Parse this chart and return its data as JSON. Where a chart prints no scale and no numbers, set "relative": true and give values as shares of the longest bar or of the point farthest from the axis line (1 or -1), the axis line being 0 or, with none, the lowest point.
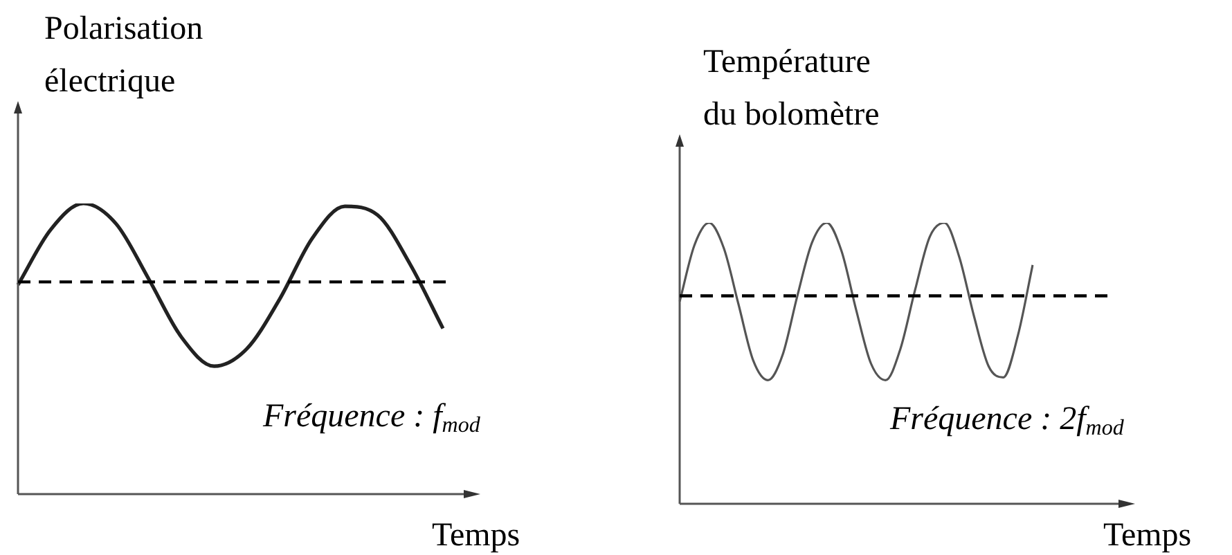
{
  "chart_data": [
    {
      "type": "line",
      "relative": true,
      "ylabel": "Polarisation\nélectrique",
      "xlabel": "Temps",
      "annotations": [
        "Fréquence : f$_{mod}$"
      ],
      "categories": [
        null,
        null,
        null,
        null,
        null,
        null,
        null,
        null,
        null,
        null,
        null,
        null,
        null,
        null
      ],
      "series": [
        {
          "color": "#222222",
          "values": [
            0.72,
            0.91,
            1.0,
            0.93,
            0.74,
            0.54,
            0.44,
            0.5,
            0.67,
            0.88,
            0.99,
            0.96,
            0.79,
            0.57
          ]
        }
      ],
      "ref_lines": [
        {
          "axis": "y",
          "value": 0.73,
          "line_style": "dashed",
          "color": "#000000"
        }
      ]
    },
    {
      "type": "line",
      "relative": true,
      "ylabel": "Température\ndu bolomètre",
      "xlabel": "Temps",
      "annotations": [
        "Fréquence : 2f$_{mod}$"
      ],
      "categories": [
        null,
        null,
        null,
        null,
        null,
        null,
        null,
        null,
        null,
        null,
        null,
        null,
        null,
        null,
        null,
        null,
        null,
        null,
        null,
        null,
        null,
        null,
        null,
        null,
        null
      ],
      "series": [
        {
          "color": "#555555",
          "values": [
            0.72,
            0.92,
            1.0,
            0.91,
            0.71,
            0.51,
            0.44,
            0.53,
            0.74,
            0.93,
            1.0,
            0.9,
            0.69,
            0.5,
            0.44,
            0.55,
            0.76,
            0.95,
            1.0,
            0.88,
            0.67,
            0.49,
            0.45,
            0.6,
            0.85
          ]
        }
      ],
      "ref_lines": [
        {
          "axis": "y",
          "value": 0.74,
          "line_style": "dashed",
          "color": "#000000"
        }
      ]
    }
  ]
}
